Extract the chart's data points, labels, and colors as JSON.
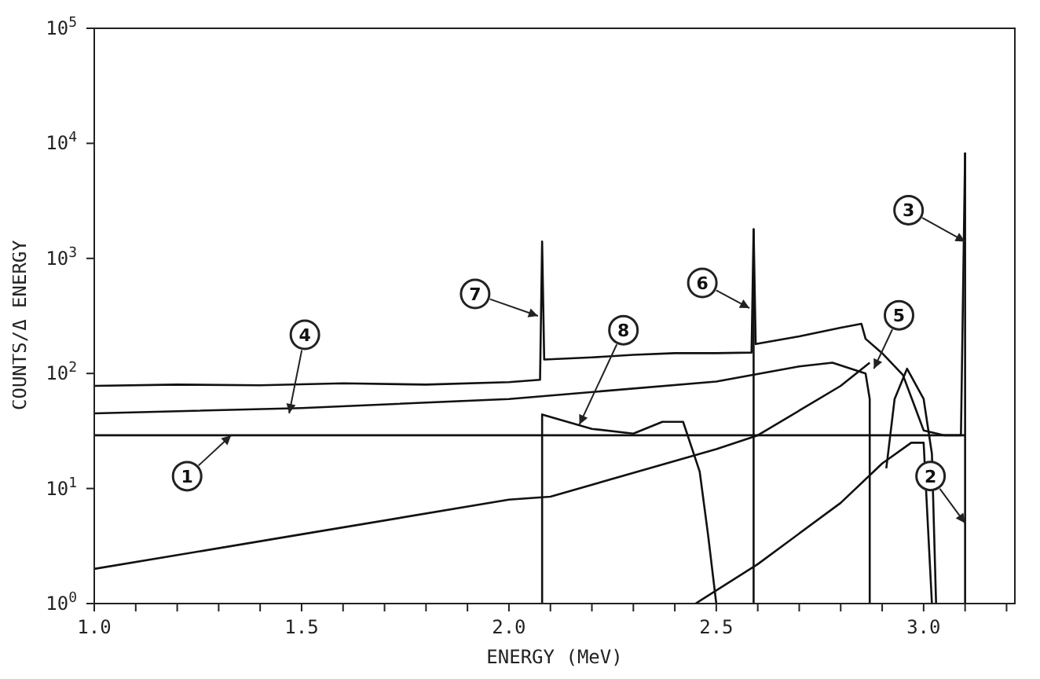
{
  "chart_data": {
    "type": "line",
    "xlabel": "ENERGY (MeV)",
    "ylabel": "COUNTS/Δ ENERGY",
    "log": "y",
    "marker": "none",
    "line_style": "solid",
    "xlim": [
      1.0,
      3.22
    ],
    "ylim": [
      1,
      100000
    ],
    "xticks": [
      {
        "value": 1.0,
        "label": "1.0"
      },
      {
        "value": 1.1,
        "label": null
      },
      {
        "value": 1.2,
        "label": null
      },
      {
        "value": 1.3,
        "label": null
      },
      {
        "value": 1.4,
        "label": null
      },
      {
        "value": 1.5,
        "label": "1.5"
      },
      {
        "value": 1.6,
        "label": null
      },
      {
        "value": 1.7,
        "label": null
      },
      {
        "value": 1.8,
        "label": null
      },
      {
        "value": 1.9,
        "label": null
      },
      {
        "value": 2.0,
        "label": "2.0"
      },
      {
        "value": 2.1,
        "label": null
      },
      {
        "value": 2.2,
        "label": null
      },
      {
        "value": 2.3,
        "label": null
      },
      {
        "value": 2.4,
        "label": null
      },
      {
        "value": 2.5,
        "label": "2.5"
      },
      {
        "value": 2.6,
        "label": null
      },
      {
        "value": 2.7,
        "label": null
      },
      {
        "value": 2.8,
        "label": null
      },
      {
        "value": 2.9,
        "label": null
      },
      {
        "value": 3.0,
        "label": "3.0"
      },
      {
        "value": 3.1,
        "label": null
      },
      {
        "value": 3.2,
        "label": null
      }
    ],
    "yticks": [
      {
        "value": 1,
        "label": "10$^{0}$"
      },
      {
        "value": 10,
        "label": "10$^{1}$"
      },
      {
        "value": 100,
        "label": "10$^{2}$"
      },
      {
        "value": 1000,
        "label": "10$^{3}$"
      },
      {
        "value": 10000,
        "label": "10$^{4}$"
      },
      {
        "value": 100000,
        "label": "10$^{5}$"
      }
    ],
    "series": [
      {
        "color": "#111111",
        "x": [
          1.0,
          1.2,
          1.4,
          1.6,
          1.8,
          2.0,
          2.075,
          2.08,
          2.085,
          2.2,
          2.3,
          2.4,
          2.5,
          2.585,
          2.59,
          2.595,
          2.7,
          2.8,
          2.85,
          2.86,
          2.9,
          2.95,
          2.98,
          3.0,
          3.05,
          3.09,
          3.1
        ],
        "values": [
          78,
          80,
          79,
          82,
          80,
          84,
          88,
          1400,
          132,
          138,
          145,
          150,
          150,
          152,
          1800,
          180,
          210,
          250,
          270,
          200,
          150,
          97,
          50,
          32,
          29,
          29,
          8300
        ]
      },
      {
        "color": "#111111",
        "x": [
          1.0,
          1.5,
          2.0,
          2.5,
          2.7,
          2.78,
          2.86,
          2.87,
          2.87
        ],
        "values": [
          45,
          50,
          60,
          85,
          115,
          124,
          100,
          60,
          1
        ]
      },
      {
        "color": "#111111",
        "x": [
          1.0,
          3.1
        ],
        "values": [
          29,
          29
        ]
      },
      {
        "color": "#111111",
        "x": [
          1.0,
          1.5,
          2.0,
          2.1,
          2.5,
          2.6,
          2.8,
          2.87
        ],
        "values": [
          2.0,
          4,
          8,
          8.5,
          22,
          29,
          78,
          124
        ]
      },
      {
        "color": "#111111",
        "x": [
          2.08,
          2.08,
          2.2,
          2.3,
          2.37,
          2.42,
          2.46,
          2.48,
          2.5
        ],
        "values": [
          1,
          44,
          33,
          30,
          38,
          38,
          14,
          4,
          1
        ]
      },
      {
        "color": "#111111",
        "x": [
          2.45,
          2.6,
          2.8,
          2.9,
          2.97,
          3.0,
          3.02
        ],
        "values": [
          1,
          2.2,
          7.5,
          16.5,
          25,
          25,
          1
        ]
      },
      {
        "color": "#111111",
        "x": [
          2.91,
          2.93,
          2.96,
          3.0,
          3.02,
          3.03
        ],
        "values": [
          15,
          60,
          110,
          60,
          20,
          1
        ]
      },
      {
        "color": "#111111",
        "x": [
          2.59,
          2.59
        ],
        "values": [
          1,
          1800
        ]
      },
      {
        "color": "#111111",
        "x": [
          3.1,
          3.1
        ],
        "values": [
          1,
          8300
        ]
      }
    ],
    "annotations": [
      {
        "text": "1",
        "x": 1.33,
        "y": 29
      },
      {
        "text": "2",
        "x": 3.1,
        "y": 5
      },
      {
        "text": "3",
        "x": 3.1,
        "y": 1400
      },
      {
        "text": "4",
        "x": 1.47,
        "y": 45
      },
      {
        "text": "5",
        "x": 2.88,
        "y": 110
      },
      {
        "text": "6",
        "x": 2.58,
        "y": 370
      },
      {
        "text": "7",
        "x": 2.07,
        "y": 316
      },
      {
        "text": "8",
        "x": 2.17,
        "y": 36
      }
    ]
  }
}
